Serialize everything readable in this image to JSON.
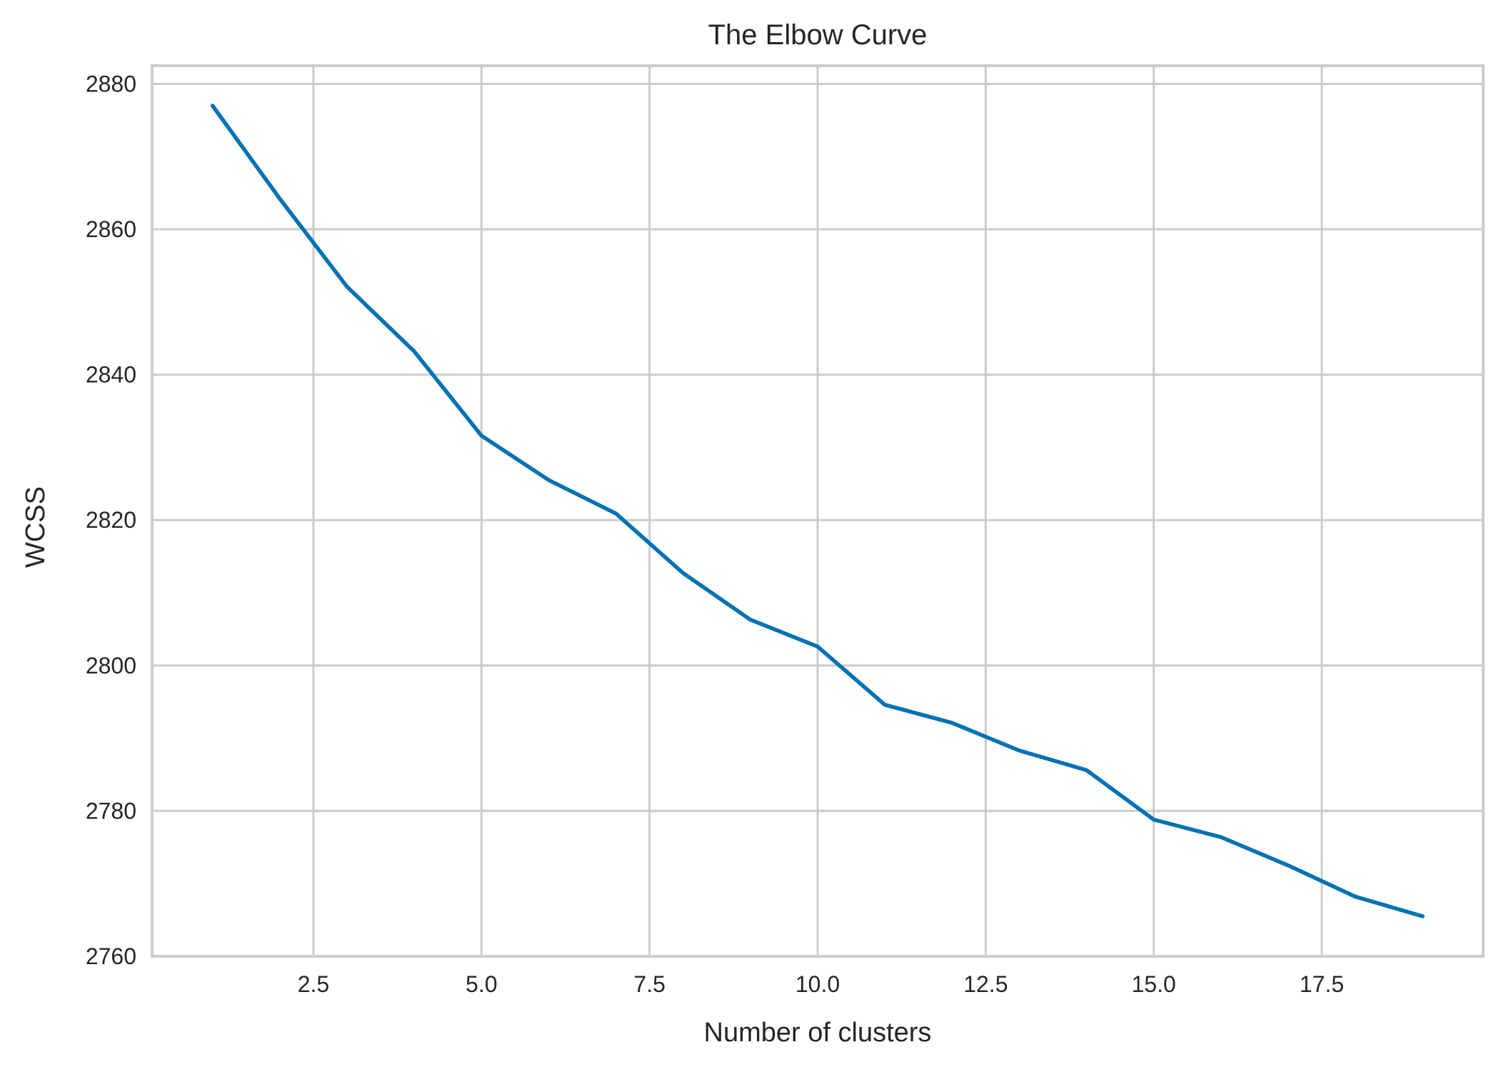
{
  "chart_data": {
    "type": "line",
    "title": "The Elbow Curve",
    "xlabel": "Number of clusters",
    "ylabel": "WCSS",
    "x_ticks": [
      "2.5",
      "5.0",
      "7.5",
      "10.0",
      "12.5",
      "15.0",
      "17.5"
    ],
    "y_ticks": [
      "2760",
      "2780",
      "2800",
      "2820",
      "2840",
      "2860",
      "2880"
    ],
    "xlim": [
      0.1,
      19.9
    ],
    "ylim": [
      2760,
      2882.5
    ],
    "grid": true,
    "series": [
      {
        "color": "#0072b2",
        "x": [
          1,
          2,
          3,
          4,
          5,
          6,
          7,
          8,
          9,
          10,
          11,
          12,
          13,
          14,
          15,
          16,
          17,
          18,
          19
        ],
        "y": [
          2877,
          2864.2,
          2852.1,
          2843.2,
          2831.6,
          2825.5,
          2820.9,
          2812.7,
          2806.3,
          2802.6,
          2794.6,
          2792.1,
          2788.3,
          2785.6,
          2778.8,
          2776.4,
          2772.5,
          2768.2,
          2765.5
        ]
      }
    ]
  }
}
